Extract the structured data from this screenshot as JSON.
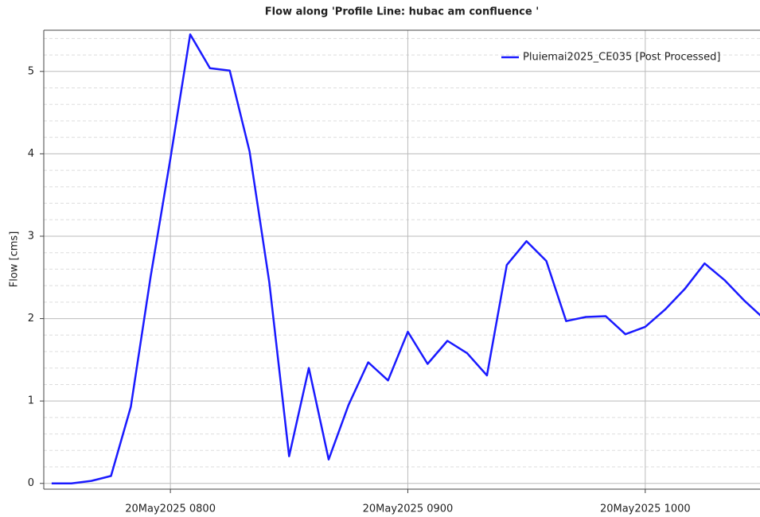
{
  "chart_data": {
    "type": "line",
    "title": "Flow along 'Profile Line: hubac am confluence '",
    "y_label": "Flow [cms]",
    "x": [
      "2025-05-20T07:30",
      "2025-05-20T07:35",
      "2025-05-20T07:40",
      "2025-05-20T07:45",
      "2025-05-20T07:50",
      "2025-05-20T07:55",
      "2025-05-20T08:00",
      "2025-05-20T08:05",
      "2025-05-20T08:10",
      "2025-05-20T08:15",
      "2025-05-20T08:20",
      "2025-05-20T08:25",
      "2025-05-20T08:30",
      "2025-05-20T08:35",
      "2025-05-20T08:40",
      "2025-05-20T08:45",
      "2025-05-20T08:50",
      "2025-05-20T08:55",
      "2025-05-20T09:00",
      "2025-05-20T09:05",
      "2025-05-20T09:10",
      "2025-05-20T09:15",
      "2025-05-20T09:20",
      "2025-05-20T09:25",
      "2025-05-20T09:30",
      "2025-05-20T09:35",
      "2025-05-20T09:40",
      "2025-05-20T09:45",
      "2025-05-20T09:50",
      "2025-05-20T09:55",
      "2025-05-20T10:00",
      "2025-05-20T10:05",
      "2025-05-20T10:10",
      "2025-05-20T10:15",
      "2025-05-20T10:20",
      "2025-05-20T10:25",
      "2025-05-20T10:30"
    ],
    "series": [
      {
        "name": "Pluiemai2025_CE035 [Post Processed]",
        "color": "#1a1aff",
        "values": [
          0,
          0,
          0.03,
          0.09,
          0.93,
          2.51,
          3.94,
          5.45,
          5.04,
          5.01,
          4.03,
          2.44,
          0.33,
          1.4,
          0.29,
          0.95,
          1.47,
          1.25,
          1.84,
          1.45,
          1.73,
          1.58,
          1.31,
          2.65,
          2.94,
          2.7,
          1.97,
          2.02,
          2.03,
          1.81,
          1.9,
          2.11,
          2.36,
          2.67,
          2.47,
          2.22,
          2.0
        ]
      }
    ],
    "xlim": [
      "2025-05-20T07:28",
      "2025-05-20T10:29"
    ],
    "xticks": [
      {
        "value": "2025-05-20T08:00",
        "label": "20May2025 0800"
      },
      {
        "value": "2025-05-20T09:00",
        "label": "20May2025 0900"
      },
      {
        "value": "2025-05-20T10:00",
        "label": "20May2025 1000"
      }
    ],
    "ylim": [
      -0.07,
      5.5
    ],
    "yticks": [
      0,
      1,
      2,
      3,
      4,
      5
    ],
    "y_minor_ticks": [
      0.2,
      0.4,
      0.6,
      0.8,
      1.2,
      1.4,
      1.6,
      1.8,
      2.2,
      2.4,
      2.6,
      2.8,
      3.2,
      3.4,
      3.6,
      3.8,
      4.2,
      4.4,
      4.6,
      4.8,
      5.2,
      5.4
    ],
    "grid": true,
    "legend": "top-right"
  }
}
